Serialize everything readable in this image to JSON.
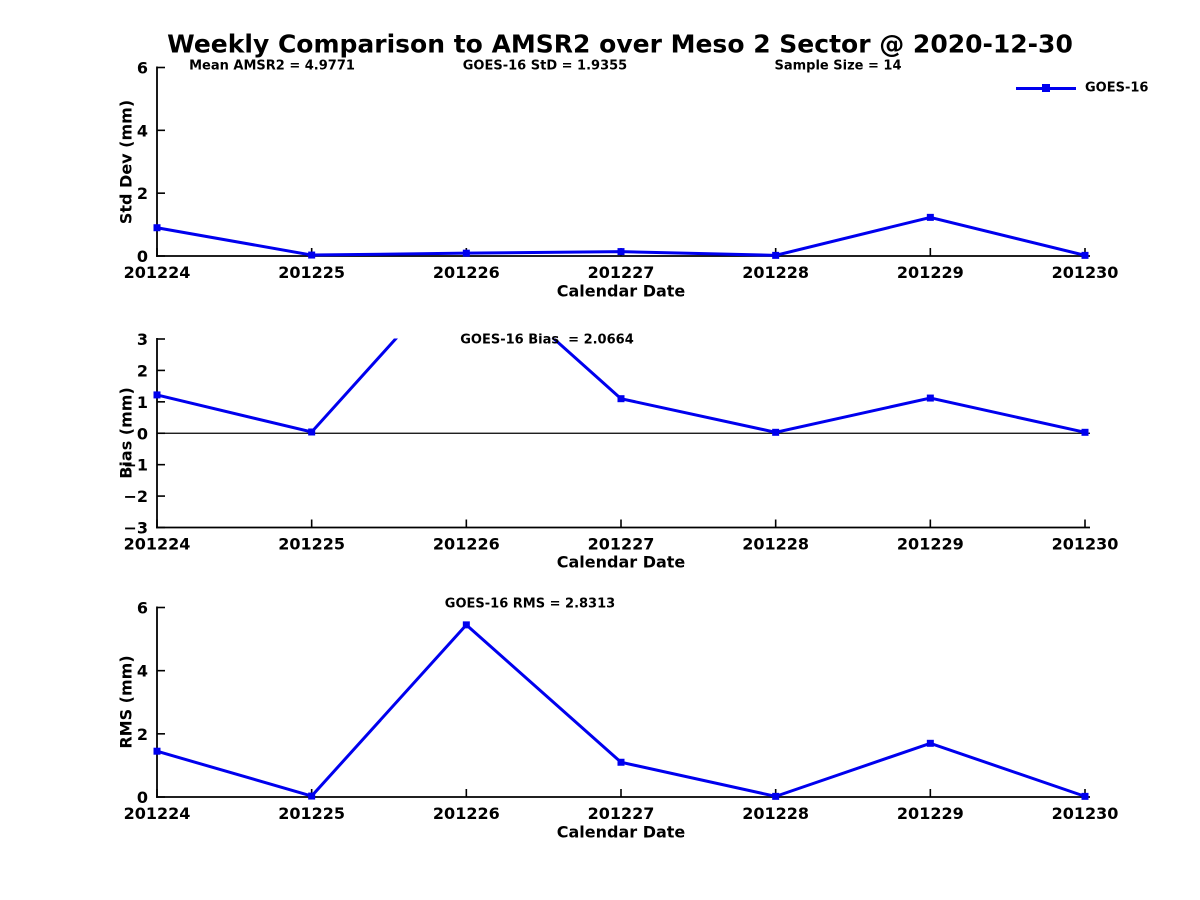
{
  "title": "Weekly Comparison to AMSR2 over Meso 2 Sector @ 2020-12-30",
  "legend": {
    "label": "GOES-16",
    "position": "top-right",
    "marker": "square"
  },
  "colors": {
    "line": "#0000EE",
    "axis": "#000000",
    "text": "#000000",
    "background": "#FFFFFF"
  },
  "chart_data": [
    {
      "type": "line",
      "series_name": "GOES-16",
      "categories": [
        "201224",
        "201225",
        "201226",
        "201227",
        "201228",
        "201229",
        "201230"
      ],
      "values": [
        0.9,
        0.03,
        0.09,
        0.14,
        0.02,
        1.23,
        0.02
      ],
      "xlabel": "Calendar Date",
      "ylabel": "Std Dev (mm)",
      "ylim": [
        0,
        6
      ],
      "yticks": [
        0,
        2,
        4,
        6
      ],
      "grid": false,
      "zero_line": false,
      "legend_visible": true,
      "annotations": [
        {
          "text": "Mean AMSR2 = 4.9771"
        },
        {
          "text": "GOES-16 StD = 1.9355"
        },
        {
          "text": "Sample Size = 14"
        }
      ]
    },
    {
      "type": "line",
      "series_name": "GOES-16",
      "categories": [
        "201224",
        "201225",
        "201226",
        "201227",
        "201228",
        "201229",
        "201230"
      ],
      "values": [
        1.22,
        0.04,
        5.5,
        1.1,
        0.03,
        1.12,
        0.03
      ],
      "clipped_points": [
        "201226"
      ],
      "xlabel": "Calendar Date",
      "ylabel": "Bias (mm)",
      "ylim": [
        -3,
        3
      ],
      "yticks": [
        -3,
        -2,
        -1,
        0,
        1,
        2,
        3
      ],
      "grid": false,
      "zero_line": true,
      "legend_visible": false,
      "annotations": [
        {
          "text": "GOES-16 Bias  = 2.0664"
        }
      ]
    },
    {
      "type": "line",
      "series_name": "GOES-16",
      "categories": [
        "201224",
        "201225",
        "201226",
        "201227",
        "201228",
        "201229",
        "201230"
      ],
      "values": [
        1.45,
        0.03,
        5.45,
        1.1,
        0.02,
        1.7,
        0.02
      ],
      "xlabel": "Calendar Date",
      "ylabel": "RMS (mm)",
      "ylim": [
        0,
        6
      ],
      "yticks": [
        0,
        2,
        4,
        6
      ],
      "grid": false,
      "zero_line": false,
      "legend_visible": false,
      "annotations": [
        {
          "text": "GOES-16 RMS = 2.8313"
        }
      ]
    }
  ]
}
